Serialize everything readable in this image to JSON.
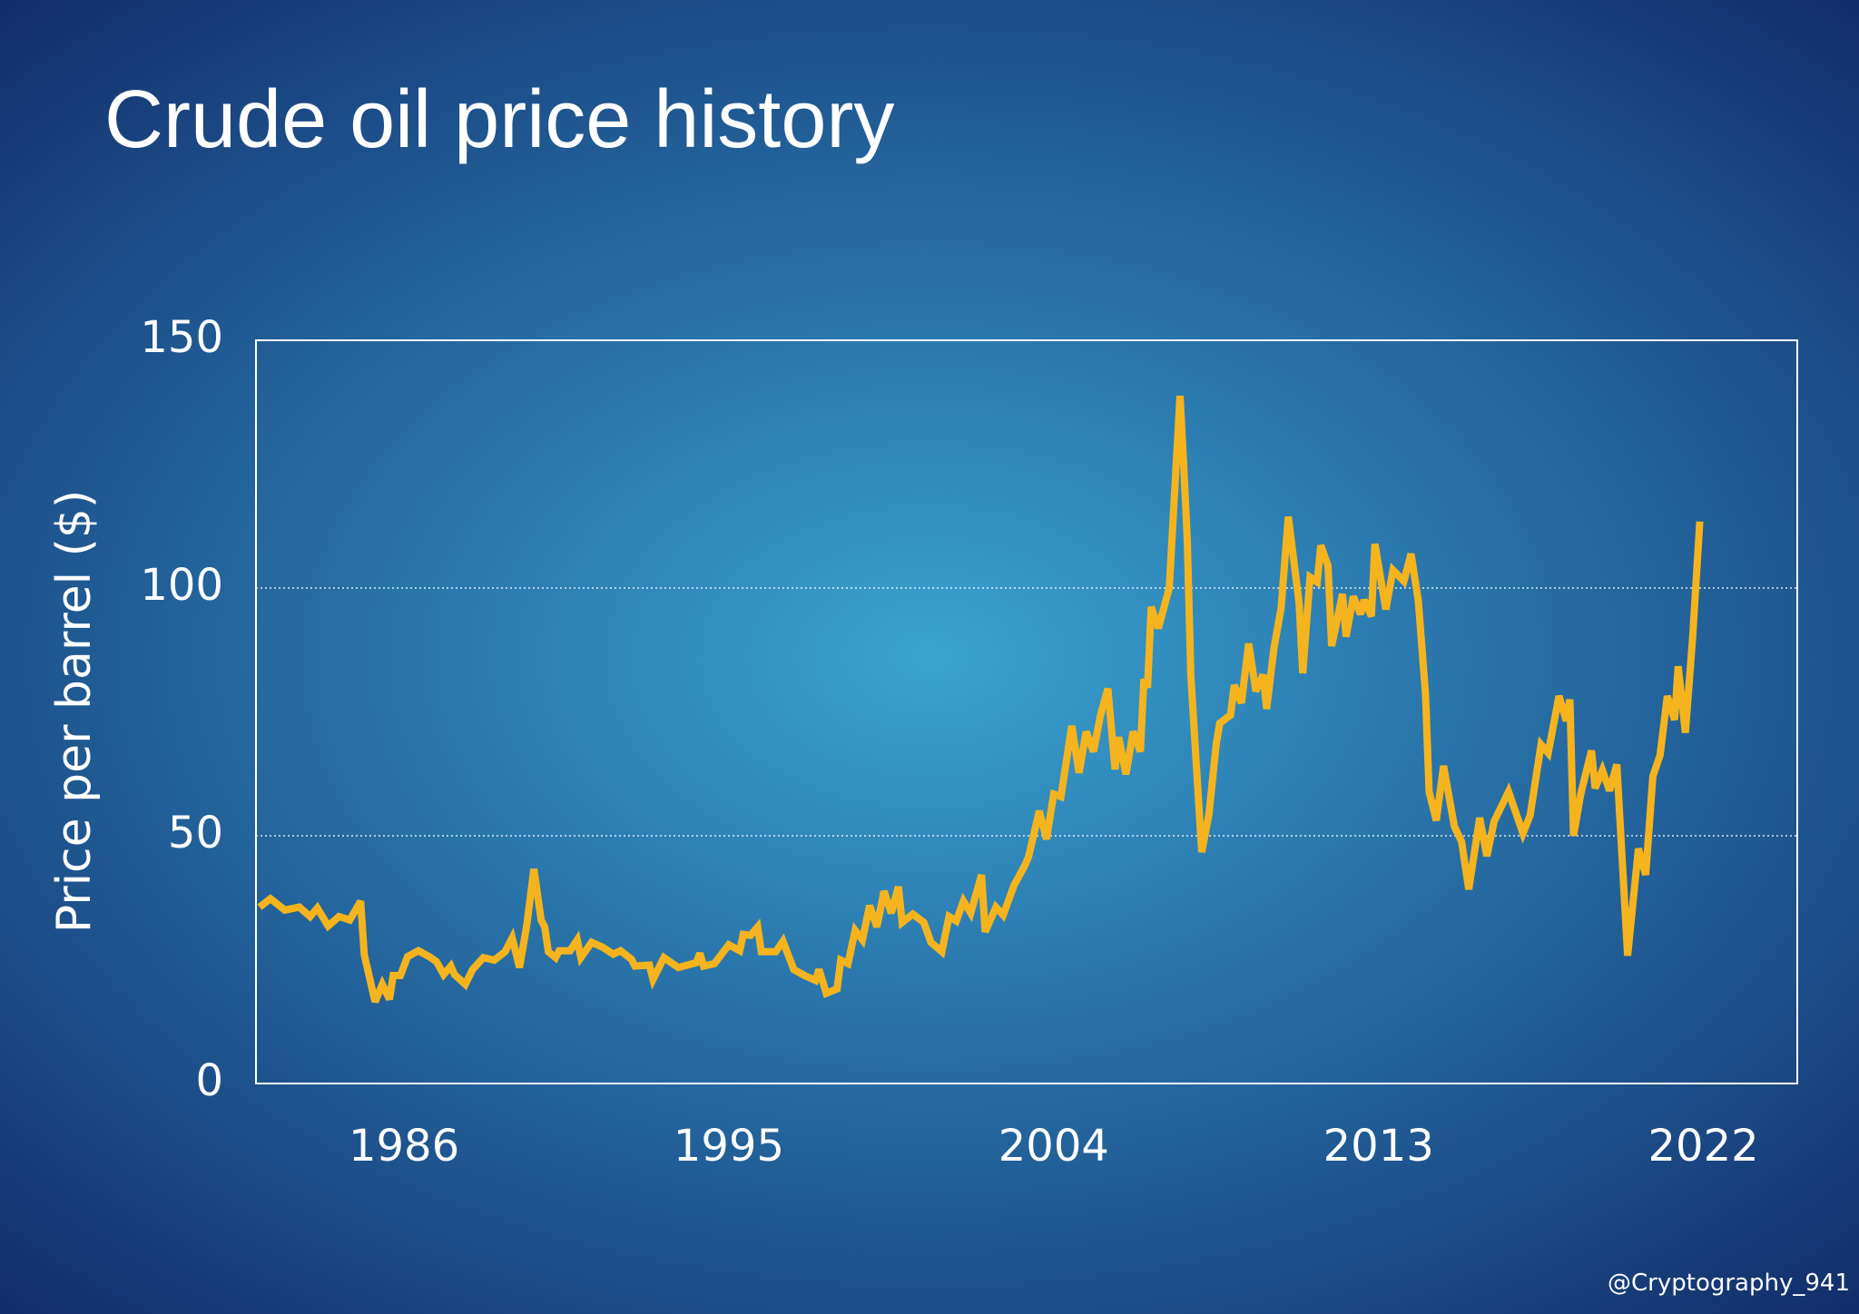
{
  "chart_data": {
    "type": "line",
    "title": "Crude oil price history",
    "y_label": "Price per barrel ($)",
    "watermark": "@Cryptography_941",
    "color": "#f5b41e",
    "xlim": [
      1981.9,
      2024.6
    ],
    "xticks": [
      1986,
      1995,
      2004,
      2013,
      2022
    ],
    "ylim": [
      0,
      150
    ],
    "yticks": [
      0,
      50,
      100,
      150
    ],
    "grid": true,
    "x": [
      1982.0,
      1982.3,
      1982.7,
      1983.1,
      1983.4,
      1983.6,
      1983.9,
      1984.2,
      1984.5,
      1984.8,
      1984.9,
      1985.2,
      1985.4,
      1985.6,
      1985.7,
      1985.9,
      1986.1,
      1986.4,
      1986.7,
      1986.9,
      1987.1,
      1987.3,
      1987.4,
      1987.7,
      1987.9,
      1988.2,
      1988.5,
      1988.8,
      1989.0,
      1989.2,
      1989.4,
      1989.6,
      1989.8,
      1989.9,
      1990.0,
      1990.2,
      1990.3,
      1990.6,
      1990.8,
      1990.9,
      1991.2,
      1991.5,
      1991.8,
      1992.0,
      1992.3,
      1992.4,
      1992.8,
      1992.9,
      1993.2,
      1993.6,
      1994.1,
      1994.2,
      1994.3,
      1994.6,
      1995.0,
      1995.3,
      1995.4,
      1995.6,
      1995.8,
      1995.9,
      1996.3,
      1996.5,
      1996.8,
      1997.1,
      1997.4,
      1997.5,
      1997.7,
      1998.0,
      1998.1,
      1998.3,
      1998.5,
      1998.7,
      1998.9,
      1999.1,
      1999.3,
      1999.5,
      1999.7,
      1999.8,
      2000.1,
      2000.4,
      2000.6,
      2000.9,
      2001.1,
      2001.3,
      2001.5,
      2001.7,
      2002.0,
      2002.1,
      2002.4,
      2002.6,
      2002.9,
      2003.2,
      2003.3,
      2003.6,
      2003.8,
      2004.0,
      2004.2,
      2004.5,
      2004.7,
      2004.9,
      2005.1,
      2005.3,
      2005.5,
      2005.7,
      2005.8,
      2006.0,
      2006.2,
      2006.4,
      2006.5,
      2006.6,
      2006.7,
      2006.9,
      2007.2,
      2007.5,
      2007.6,
      2007.7,
      2007.8,
      2008.1,
      2008.3,
      2008.5,
      2008.6,
      2008.9,
      2009.0,
      2009.2,
      2009.4,
      2009.6,
      2009.8,
      2009.9,
      2010.1,
      2010.3,
      2010.5,
      2010.8,
      2010.9,
      2011.1,
      2011.3,
      2011.4,
      2011.6,
      2011.7,
      2012.0,
      2012.1,
      2012.3,
      2012.5,
      2012.6,
      2012.8,
      2012.9,
      2013.2,
      2013.4,
      2013.7,
      2013.9,
      2014.1,
      2014.3,
      2014.4,
      2014.6,
      2014.8,
      2015.1,
      2015.3,
      2015.5,
      2015.8,
      2016.0,
      2016.2,
      2016.6,
      2017.0,
      2017.2,
      2017.5,
      2017.7,
      2018.0,
      2018.2,
      2018.3,
      2018.4,
      2018.6,
      2018.9,
      2019.0,
      2019.2,
      2019.4,
      2019.6,
      2019.9,
      2020.2,
      2020.4,
      2020.6,
      2020.8,
      2021.0,
      2021.2,
      2021.3,
      2021.5,
      2021.7,
      2021.9
    ],
    "values": [
      35.6,
      37.3,
      35,
      35.6,
      33.7,
      35.4,
      31.8,
      33.7,
      33,
      36.8,
      26,
      16.5,
      20,
      17,
      21.8,
      21.8,
      25.6,
      26.8,
      25.6,
      24.6,
      22,
      23.7,
      22,
      20,
      23,
      25.4,
      24.9,
      26.6,
      29.4,
      23.4,
      31.8,
      43.3,
      33,
      31.6,
      26.6,
      25.4,
      26.8,
      26.8,
      29,
      25.4,
      28.5,
      27.5,
      26.1,
      26.8,
      25.1,
      23.7,
      23.9,
      21,
      25.4,
      23.4,
      24.4,
      26.3,
      23.7,
      24.2,
      28,
      26.8,
      30.1,
      29.9,
      31.6,
      26.6,
      26.6,
      28.7,
      23,
      21.8,
      20.8,
      23,
      18.2,
      19.1,
      24.9,
      24.2,
      30.9,
      29,
      35.9,
      31.6,
      38.8,
      34.4,
      39.7,
      32.5,
      34.2,
      32.5,
      28.5,
      26.6,
      33.7,
      32.8,
      36.8,
      34.4,
      42.1,
      30.6,
      35.6,
      34,
      40,
      44,
      45.7,
      55,
      49.3,
      58.4,
      57.9,
      72.2,
      62.7,
      71,
      67,
      74.4,
      79.7,
      63.4,
      69.9,
      62.4,
      71,
      67,
      81.6,
      79.9,
      96.2,
      91.9,
      100,
      138.8,
      124.9,
      109.6,
      82.3,
      46.7,
      54.3,
      68.4,
      72.7,
      74.4,
      80.4,
      76.8,
      88.8,
      79.2,
      82.5,
      75.6,
      87.8,
      95.9,
      114.4,
      96.9,
      82.8,
      102.2,
      101.2,
      108.6,
      104.5,
      88.3,
      98.8,
      90.2,
      98.3,
      94.7,
      97.6,
      94.3,
      108.9,
      95.7,
      103.6,
      101.4,
      106.9,
      97.4,
      78.7,
      58.9,
      53.1,
      64.1,
      51.9,
      48.8,
      39.2,
      53.6,
      45.9,
      52.9,
      58.9,
      50.5,
      54.1,
      68.4,
      66.7,
      78.2,
      73.2,
      77.5,
      50,
      58.4,
      67.2,
      59.6,
      63.2,
      59.1,
      64.4,
      25.8,
      47.4,
      42.1,
      62,
      66.3,
      78.2,
      73.4,
      84.2,
      70.8,
      90,
      113.4
    ]
  }
}
